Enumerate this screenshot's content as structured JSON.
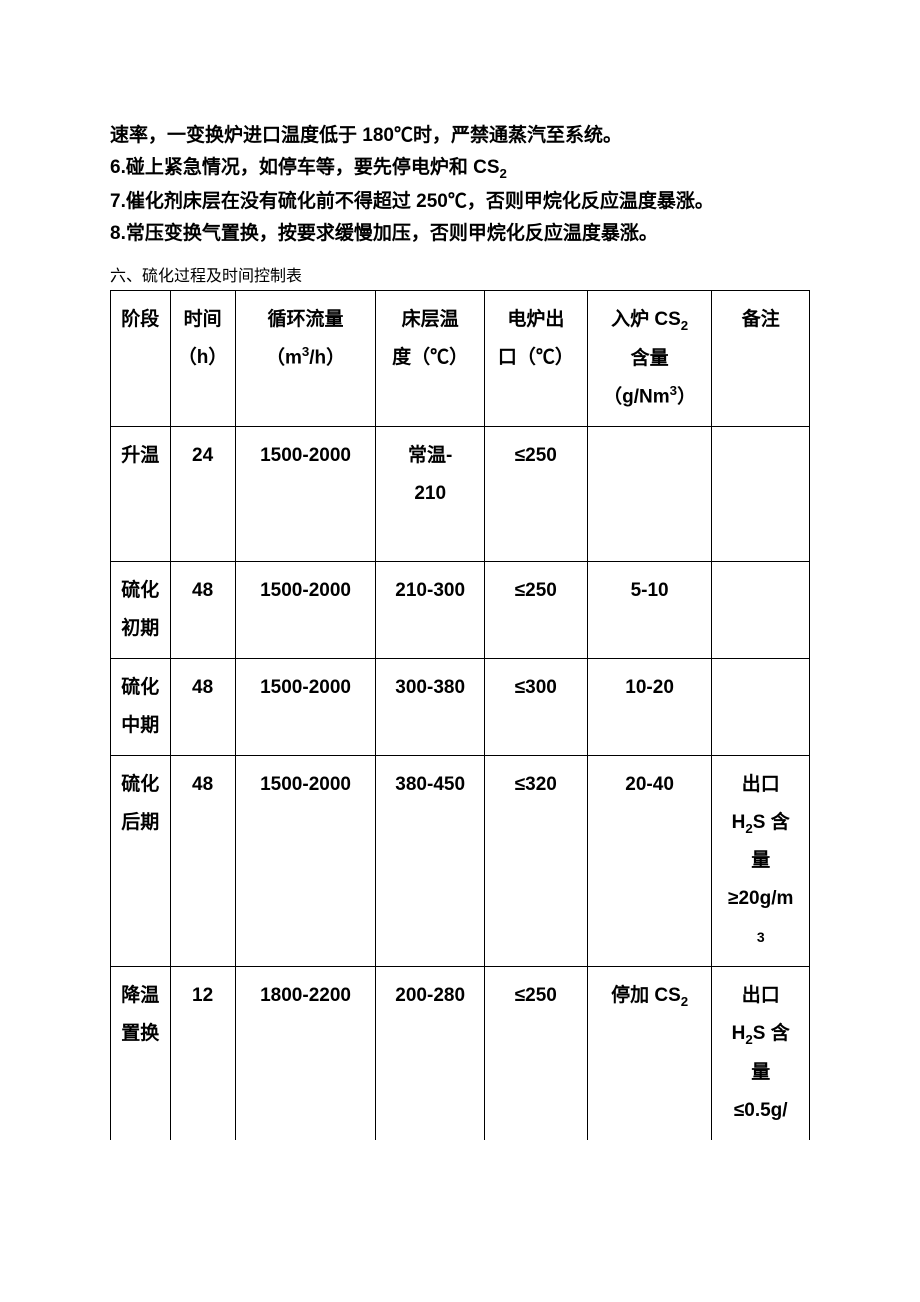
{
  "paragraphs": {
    "p1": "速率，一变换炉进口温度低于 180℃时，严禁通蒸汽至系统。",
    "p2_prefix": "6.碰上紧急情况，如停车等，要先停电炉和 CS",
    "p2_sub": "2",
    "p3": "7.催化剂床层在没有硫化前不得超过 250℃，否则甲烷化反应温度暴涨。",
    "p4": "8.常压变换气置换，按要求缓慢加压，否则甲烷化反应温度暴涨。"
  },
  "caption": "六、硫化过程及时间控制表",
  "table": {
    "header": {
      "c1": "阶段",
      "c2a": "时间",
      "c2b": "（h）",
      "c3a": "循环流量",
      "c3b_pre": "（m",
      "c3b_sup": "3",
      "c3b_post": "/h）",
      "c4a": "床层温",
      "c4b": "度（℃）",
      "c5a": "电炉出",
      "c5b": "口（℃）",
      "c6a_pre": "入炉 CS",
      "c6a_sub": "2",
      "c6b": "含量",
      "c6c_pre": "（g/Nm",
      "c6c_sup": "3",
      "c6c_post": "）",
      "c7": "备注"
    },
    "rows": [
      {
        "c1": "升温",
        "c2": "24",
        "c3": "1500-2000",
        "c4a": "常温-",
        "c4b": "210",
        "c5": "≤250",
        "c6": "",
        "c7": ""
      },
      {
        "c1a": "硫化",
        "c1b": "初期",
        "c2": "48",
        "c3": "1500-2000",
        "c4": "210-300",
        "c5": "≤250",
        "c6": "5-10",
        "c7": ""
      },
      {
        "c1a": "硫化",
        "c1b": "中期",
        "c2": "48",
        "c3": "1500-2000",
        "c4": "300-380",
        "c5": "≤300",
        "c6": "10-20",
        "c7": ""
      },
      {
        "c1a": "硫化",
        "c1b": "后期",
        "c2": "48",
        "c3": "1500-2000",
        "c4": "380-450",
        "c5": "≤320",
        "c6": "20-40",
        "c7a": "出口",
        "c7b_pre": "H",
        "c7b_sub": "2",
        "c7b_post": "S 含",
        "c7c": "量",
        "c7d": "≥20g/m",
        "c7e": "3"
      },
      {
        "c1a": "降温",
        "c1b": "置换",
        "c2": "12",
        "c3": "1800-2200",
        "c4": "200-280",
        "c5": "≤250",
        "c6_pre": "停加 CS",
        "c6_sub": "2",
        "c7a": "出口",
        "c7b_pre": "H",
        "c7b_sub": "2",
        "c7b_post": "S 含",
        "c7c": "量",
        "c7d": "≤0.5g/"
      }
    ]
  },
  "style": {
    "bg": "#ffffff",
    "text": "#000000",
    "border": "#000000",
    "font_size_body": 19,
    "font_size_caption": 16
  }
}
